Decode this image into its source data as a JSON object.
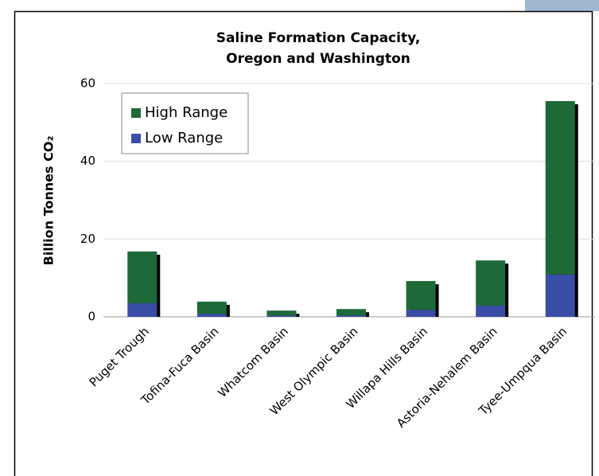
{
  "chart_data": {
    "type": "stacked_bar",
    "title": [
      "Saline Formation Capacity,",
      "Oregon and Washington"
    ],
    "y_label": "Billion Tonnes CO₂",
    "categories": [
      "Puget Trough",
      "Tofina-Fuca Basin",
      "Whatcom Basin",
      "West Olympic Basin",
      "Willapa Hills Basin",
      "Astoria-Nehalem Basin",
      "Tyee-Umpqua Basin"
    ],
    "series": [
      {
        "name": "Low Range",
        "color": "#3a4da6",
        "values": [
          3.5,
          0.8,
          0.3,
          0.3,
          1.8,
          2.9,
          10.9
        ]
      },
      {
        "name": "High Range",
        "color": "#1d6a38",
        "values": [
          13.3,
          3.1,
          1.3,
          1.7,
          7.4,
          11.6,
          44.6
        ]
      }
    ],
    "ylim": [
      0,
      60
    ],
    "yticks": [
      0,
      20,
      40,
      60
    ],
    "grid": true,
    "legend": "upper-left"
  }
}
